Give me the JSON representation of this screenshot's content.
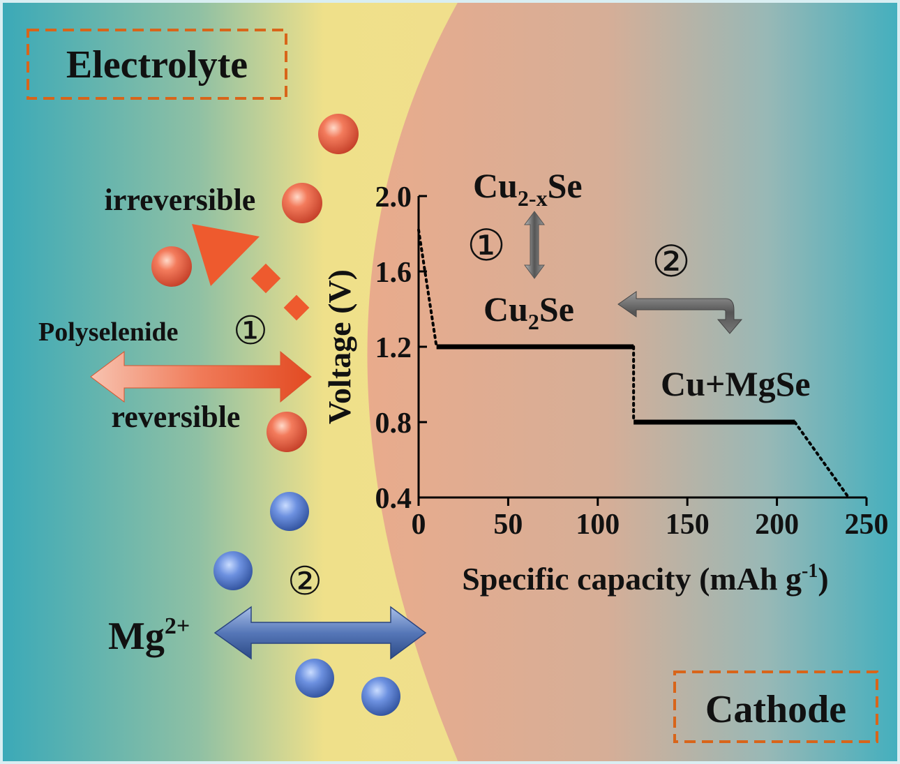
{
  "labels": {
    "electrolyte": "Electrolyte",
    "cathode": "Cathode",
    "irreversible": "irreversible",
    "polyselenide": "Polyselenide",
    "reversible": "reversible",
    "step_1": "①",
    "step_2": "②",
    "mg_ion": {
      "base": "Mg",
      "sup": "2+"
    }
  },
  "phases": {
    "cu2xse": {
      "base": "Cu",
      "sub": "2-x",
      "tail": "Se"
    },
    "cu2se": {
      "base": "Cu",
      "sub": "2",
      "tail": "Se"
    },
    "cu_mgse": "Cu+MgSe"
  },
  "colors": {
    "background_teal": "#3aa9b8",
    "electrolyte_yellow": "#efe08a",
    "cathode_peach": "#e9ab8c",
    "box_border": "#d8651a",
    "polyselenide_arrow": "#ee5a2e",
    "mg_arrow": "#3e5f9e",
    "red_sphere": "#e9553c",
    "blue_sphere": "#4a70c4",
    "curve": "#000000"
  },
  "chart_data": {
    "type": "line",
    "xlabel": "Specific capacity (mAh g",
    "xlabel_sup": "-1",
    "xlabel_tail": ")",
    "ylabel": "Voltage (V)",
    "xlim": [
      0,
      250
    ],
    "ylim": [
      0.4,
      2.0
    ],
    "xticks": [
      0,
      50,
      100,
      150,
      200,
      250
    ],
    "yticks": [
      2.0,
      1.6,
      1.2,
      0.8,
      0.4
    ],
    "xtick_labels": [
      "0",
      "50",
      "100",
      "150",
      "200",
      "250"
    ],
    "ytick_labels": [
      "2.0",
      "1.6",
      "1.2",
      "0.8",
      "0.4"
    ],
    "segments": [
      {
        "style": "dotted",
        "points": [
          [
            0,
            1.82
          ],
          [
            10,
            1.2
          ]
        ]
      },
      {
        "style": "solid",
        "points": [
          [
            10,
            1.2
          ],
          [
            120,
            1.2
          ]
        ]
      },
      {
        "style": "dotted",
        "points": [
          [
            120,
            1.2
          ],
          [
            120,
            0.8
          ]
        ]
      },
      {
        "style": "solid",
        "points": [
          [
            120,
            0.8
          ],
          [
            210,
            0.8
          ]
        ]
      },
      {
        "style": "dotted",
        "points": [
          [
            210,
            0.8
          ],
          [
            240,
            0.4
          ]
        ]
      }
    ]
  }
}
